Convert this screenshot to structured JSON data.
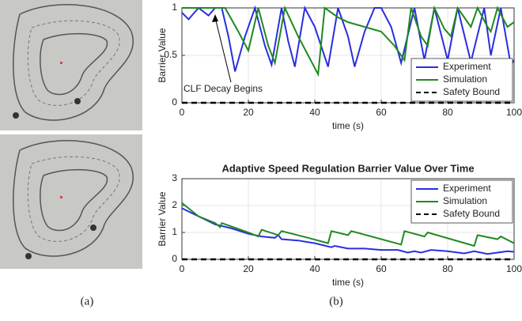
{
  "panel_labels": [
    "(a)",
    "(b)"
  ],
  "chart_data": [
    {
      "type": "line",
      "ylabel": "Barrier Value",
      "xlabel": "time (s)",
      "annotation": "CLF Decay Begins",
      "xlim": [
        0,
        100
      ],
      "ylim": [
        0,
        1
      ],
      "xticks": [
        0,
        20,
        40,
        60,
        80,
        100
      ],
      "yticks": [
        0,
        0.5,
        1
      ],
      "grid": true,
      "legend": "lower right",
      "series": [
        {
          "name": "Experiment",
          "color": "#2a2ee0",
          "x": [
            0,
            2,
            5,
            8,
            10,
            12,
            14,
            16,
            19,
            22,
            25,
            27,
            30,
            32,
            34,
            37,
            40,
            44,
            47,
            50,
            52,
            55,
            58,
            60,
            63,
            66,
            70,
            73,
            76,
            80,
            83,
            87,
            91,
            93,
            96,
            99,
            100
          ],
          "values": [
            0.95,
            0.88,
            1,
            0.92,
            1,
            1,
            0.7,
            0.33,
            0.7,
            1,
            0.6,
            0.4,
            1,
            0.65,
            0.38,
            1,
            0.8,
            0.38,
            1,
            0.7,
            0.38,
            0.75,
            1,
            1,
            0.8,
            0.42,
            1,
            0.45,
            1,
            0.45,
            1,
            0.43,
            1,
            0.5,
            1,
            0.4,
            0.45
          ]
        },
        {
          "name": "Simulation",
          "color": "#1f8a1f",
          "x": [
            0,
            5,
            10,
            13,
            17,
            20,
            23,
            26,
            28,
            31,
            35,
            38,
            41,
            43,
            47,
            50,
            55,
            60,
            64,
            67,
            69,
            72,
            74,
            76,
            79,
            81,
            83,
            86,
            87,
            89,
            92,
            93,
            95,
            98,
            100
          ],
          "values": [
            1,
            1,
            1,
            1,
            0.75,
            0.55,
            1,
            0.6,
            0.42,
            1,
            0.7,
            0.5,
            0.3,
            1,
            0.9,
            0.85,
            0.8,
            0.75,
            0.6,
            0.45,
            1,
            0.7,
            0.6,
            1,
            0.78,
            0.7,
            1,
            0.85,
            0.8,
            1,
            0.8,
            0.75,
            1,
            0.8,
            0.85
          ]
        },
        {
          "name": "Safety Bound",
          "color": "#000000",
          "dash": true,
          "x": [
            0,
            100
          ],
          "values": [
            0,
            0
          ]
        }
      ]
    },
    {
      "type": "line",
      "title": "Adaptive Speed Regulation Barrier Value Over Time",
      "ylabel": "Barrier Value",
      "xlabel": "time (s)",
      "xlim": [
        0,
        100
      ],
      "ylim": [
        0,
        3
      ],
      "xticks": [
        0,
        20,
        40,
        60,
        80,
        100
      ],
      "yticks": [
        0,
        1,
        2,
        3
      ],
      "grid": true,
      "legend": "upper right",
      "series": [
        {
          "name": "Experiment",
          "color": "#2a2ee0",
          "x": [
            0,
            5,
            10,
            15,
            20,
            24,
            28,
            29,
            30,
            35,
            40,
            45,
            46,
            50,
            55,
            60,
            65,
            68,
            70,
            72,
            75,
            80,
            85,
            88,
            92,
            95,
            98,
            100
          ],
          "values": [
            1.9,
            1.6,
            1.3,
            1.15,
            0.95,
            0.85,
            0.8,
            0.9,
            0.75,
            0.7,
            0.6,
            0.45,
            0.5,
            0.4,
            0.4,
            0.35,
            0.35,
            0.25,
            0.3,
            0.25,
            0.35,
            0.3,
            0.22,
            0.3,
            0.2,
            0.25,
            0.3,
            0.28
          ]
        },
        {
          "name": "Simulation",
          "color": "#1f8a1f",
          "x": [
            0,
            5,
            10,
            11.5,
            12,
            20,
            23,
            24,
            29,
            30,
            38,
            44,
            45,
            50,
            51,
            66,
            67,
            73,
            74,
            88,
            89,
            95,
            96,
            100
          ],
          "values": [
            2.1,
            1.6,
            1.35,
            1.2,
            1.35,
            1.0,
            0.85,
            1.1,
            0.9,
            1.05,
            0.8,
            0.6,
            1.05,
            0.9,
            1.05,
            0.55,
            1.05,
            0.85,
            1.0,
            0.5,
            0.9,
            0.75,
            0.85,
            0.6
          ]
        },
        {
          "name": "Safety Bound",
          "color": "#000000",
          "dash": true,
          "x": [
            0,
            100
          ],
          "values": [
            0,
            0
          ]
        }
      ]
    }
  ]
}
